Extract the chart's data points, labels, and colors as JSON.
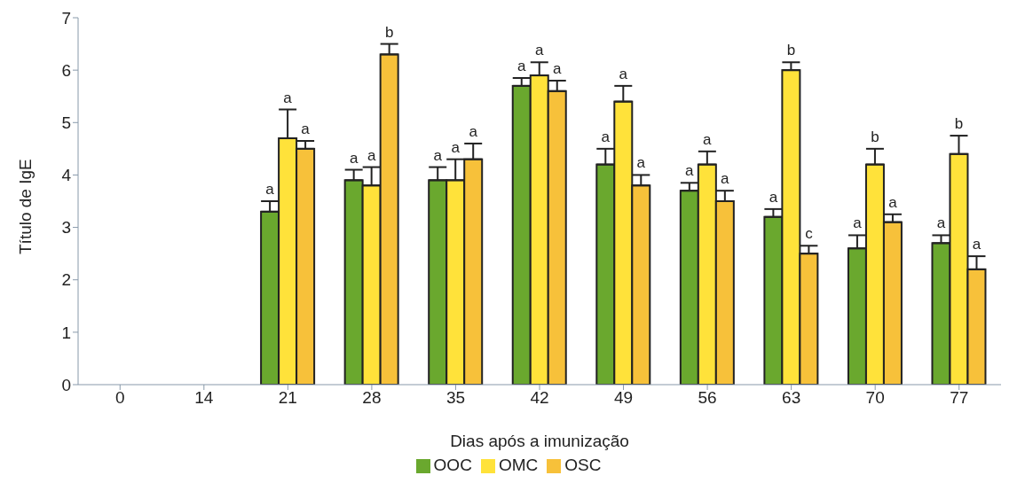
{
  "chart_data": {
    "type": "bar",
    "xlabel": "Dias após a imunização",
    "ylabel": "Título de IgE",
    "categories": [
      "0",
      "14",
      "21",
      "28",
      "35",
      "42",
      "49",
      "56",
      "63",
      "70",
      "77"
    ],
    "series": [
      {
        "name": "OOC",
        "color": "#6aa82e",
        "values": [
          0,
          0,
          3.3,
          3.9,
          3.9,
          5.7,
          4.2,
          3.7,
          3.2,
          2.6,
          2.7
        ],
        "errors": [
          null,
          null,
          [
            3.3,
            3.5
          ],
          [
            3.9,
            4.1
          ],
          [
            3.9,
            4.15
          ],
          [
            5.7,
            5.85
          ],
          [
            4.2,
            4.5
          ],
          [
            3.7,
            3.85
          ],
          [
            3.2,
            3.35
          ],
          [
            2.6,
            2.85
          ],
          [
            2.7,
            2.85
          ]
        ],
        "value_labels": [
          null,
          null,
          "a",
          "a",
          "a",
          "a",
          "a",
          "a",
          "a",
          "a",
          "a"
        ]
      },
      {
        "name": "OMC",
        "color": "#ffe23a",
        "values": [
          0,
          0,
          4.7,
          3.8,
          3.9,
          5.9,
          5.4,
          4.2,
          6.0,
          4.2,
          4.4
        ],
        "errors": [
          null,
          null,
          [
            4.7,
            5.25
          ],
          [
            3.8,
            4.15
          ],
          [
            3.9,
            4.3
          ],
          [
            5.9,
            6.15
          ],
          [
            5.4,
            5.7
          ],
          [
            4.2,
            4.45
          ],
          [
            6.0,
            6.15
          ],
          [
            4.2,
            4.5
          ],
          [
            4.4,
            4.75
          ]
        ],
        "value_labels": [
          null,
          null,
          "a",
          "a",
          "a",
          "a",
          "a",
          "a",
          "b",
          "b",
          "b"
        ]
      },
      {
        "name": "OSC",
        "color": "#f7c13a",
        "values": [
          0,
          0,
          4.5,
          6.3,
          4.3,
          5.6,
          3.8,
          3.5,
          2.5,
          3.1,
          2.2
        ],
        "errors": [
          null,
          null,
          [
            4.5,
            4.65
          ],
          [
            6.3,
            6.5
          ],
          [
            4.3,
            4.6
          ],
          [
            5.6,
            5.8
          ],
          [
            3.8,
            4.0
          ],
          [
            3.5,
            3.7
          ],
          [
            2.5,
            2.65
          ],
          [
            3.1,
            3.25
          ],
          [
            2.2,
            2.45
          ]
        ],
        "value_labels": [
          null,
          null,
          "a",
          "b",
          "a",
          "a",
          "a",
          "a",
          "c",
          "a",
          "a"
        ]
      }
    ],
    "ylim": [
      0,
      7
    ],
    "yticks": [
      0,
      1,
      2,
      3,
      4,
      5,
      6,
      7
    ],
    "grid": false,
    "legend": "bottom"
  }
}
